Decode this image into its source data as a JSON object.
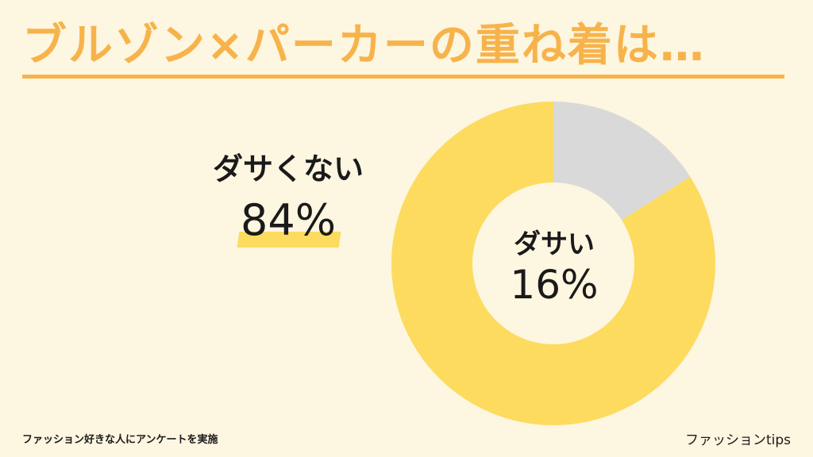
{
  "chart_data": {
    "type": "pie",
    "title": "ブルゾン×パーカーの重ね着は…",
    "slices": [
      {
        "label": "ダサい",
        "value": 16,
        "display": "16%",
        "color": "#d9d9d9"
      },
      {
        "label": "ダサくない",
        "value": 84,
        "display": "84%",
        "color": "#fcdb5f"
      }
    ]
  },
  "footer": {
    "source": "ファッション好きな人にアンケートを実施",
    "brand": "ファッションtips"
  },
  "colors": {
    "background": "#fdf6e0",
    "accent": "#f7b34b",
    "highlight": "#fcdb5f",
    "minor": "#d9d9d9"
  }
}
